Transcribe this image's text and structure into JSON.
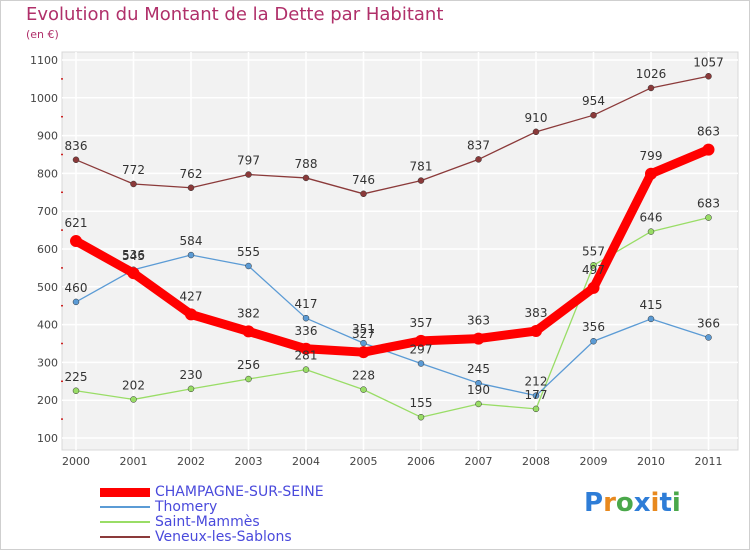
{
  "title": "Evolution du Montant de la Dette par Habitant",
  "unit_label": "(en €)",
  "logo": {
    "letters": [
      "P",
      "r",
      "o",
      "x",
      "i",
      "t",
      "i"
    ],
    "colors": [
      "#2e7dd7",
      "#e8891e",
      "#4aa84a",
      "#2e7dd7",
      "#e8891e",
      "#2e7dd7",
      "#4aa84a"
    ]
  },
  "chart_data": {
    "type": "line",
    "x": [
      "2000",
      "2001",
      "2002",
      "2003",
      "2004",
      "2005",
      "2006",
      "2007",
      "2008",
      "2009",
      "2010",
      "2011"
    ],
    "ylim": [
      100,
      1100
    ],
    "yticks": [
      100,
      200,
      300,
      400,
      500,
      600,
      700,
      800,
      900,
      1000,
      1100
    ],
    "grid": true,
    "legend_position": "bottom-left",
    "series": [
      {
        "name": "CHAMPAGNE-SUR-SEINE",
        "color": "#ff0000",
        "values": [
          621,
          536,
          427,
          382,
          336,
          327,
          357,
          363,
          383,
          497,
          799,
          863
        ]
      },
      {
        "name": "Thomery",
        "color": "#5b9bd5",
        "values": [
          460,
          545,
          584,
          555,
          417,
          351,
          297,
          245,
          212,
          356,
          415,
          366
        ]
      },
      {
        "name": "Saint-Mammès",
        "color": "#99dd66",
        "values": [
          225,
          202,
          230,
          256,
          281,
          228,
          155,
          190,
          177,
          557,
          646,
          683
        ]
      },
      {
        "name": "Veneux-les-Sablons",
        "color": "#8b3a3a",
        "values": [
          836,
          772,
          762,
          797,
          788,
          746,
          781,
          837,
          910,
          954,
          1026,
          1057
        ]
      }
    ]
  }
}
